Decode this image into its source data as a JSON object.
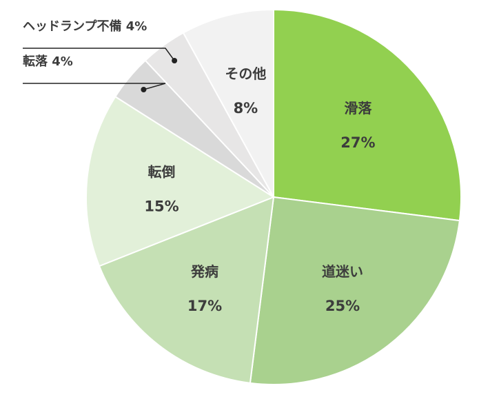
{
  "chart_data": {
    "type": "pie",
    "start": "12 o'clock",
    "direction": "clockwise",
    "slices": [
      {
        "label": "滑落",
        "value": 27,
        "value_text": "27%",
        "color": "#92d050",
        "label_placement": "inside"
      },
      {
        "label": "道迷い",
        "value": 25,
        "value_text": "25%",
        "color": "#a9d18e",
        "label_placement": "inside"
      },
      {
        "label": "発病",
        "value": 17,
        "value_text": "17%",
        "color": "#c5e0b4",
        "label_placement": "inside"
      },
      {
        "label": "転倒",
        "value": 15,
        "value_text": "15%",
        "color": "#e2f0d9",
        "label_placement": "inside"
      },
      {
        "label": "転落",
        "value": 4,
        "value_text": "4%",
        "callout_text": "転落 4%",
        "color": "#d9d9d9",
        "label_placement": "callout"
      },
      {
        "label": "ヘッドランプ不備",
        "value": 4,
        "value_text": "4%",
        "callout_text": "ヘッドランプ不備 4%",
        "color": "#e7e6e6",
        "label_placement": "callout"
      },
      {
        "label": "その他",
        "value": 8,
        "value_text": "8%",
        "color": "#f2f2f2",
        "label_placement": "inside"
      }
    ]
  }
}
